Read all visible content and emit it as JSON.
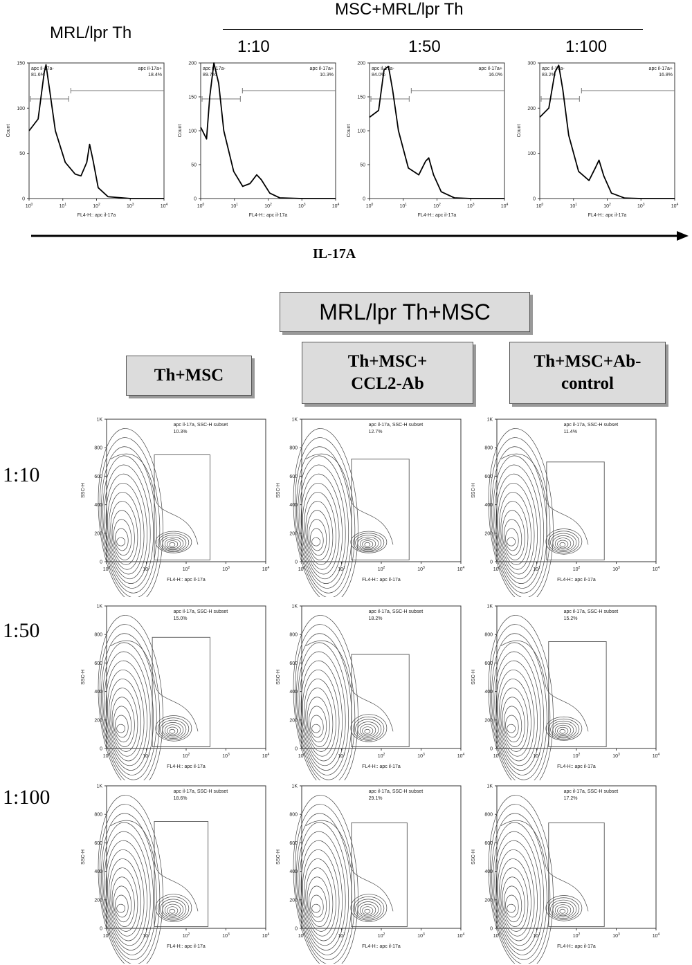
{
  "header": {
    "left_label": "MRL/lpr Th",
    "group_label": "MSC+MRL/lpr Th",
    "ratio_labels": [
      "1:10",
      "1:50",
      "1:100"
    ],
    "arrow_label": "IL-17A"
  },
  "section2": {
    "title": "MRL/lpr Th+MSC",
    "col_headers": [
      "Th+MSC",
      "Th+MSC+ CCL2-Ab",
      "Th+MSC+Ab- control"
    ],
    "row_labels": [
      "1:10",
      "1:50",
      "1:100"
    ]
  },
  "chart_data": [
    {
      "type": "line",
      "title": "MRL/lpr Th",
      "xlabel": "FL4-H:: apc il-17a",
      "ylabel": "Count",
      "xscale": "log",
      "xlim": [
        1,
        10000
      ],
      "ylim": [
        0,
        150
      ],
      "yticks": [
        0,
        50,
        100,
        150
      ],
      "xticks": [
        "10^0",
        "10^1",
        "10^2",
        "10^3",
        "10^4"
      ],
      "gates": [
        {
          "name": "apc il-17a-",
          "percent": "81.6%"
        },
        {
          "name": "apc il-17a+",
          "percent": "18.4%"
        }
      ],
      "x": [
        0.8,
        1.5,
        2.3,
        2.6,
        3.2,
        5,
        10,
        20,
        30,
        45,
        55,
        70,
        100,
        200,
        1000,
        10000
      ],
      "y": [
        75,
        88,
        140,
        148,
        125,
        75,
        40,
        27,
        25,
        40,
        60,
        42,
        12,
        2,
        0,
        0
      ]
    },
    {
      "type": "line",
      "title": "1:10",
      "xlabel": "FL4-H:: apc il-17a",
      "ylabel": "Count",
      "xscale": "log",
      "xlim": [
        1,
        10000
      ],
      "ylim": [
        0,
        200
      ],
      "yticks": [
        0,
        50,
        100,
        150,
        200
      ],
      "xticks": [
        "10^0",
        "10^1",
        "10^2",
        "10^3",
        "10^4"
      ],
      "gates": [
        {
          "name": "apc il-17a-",
          "percent": "89.7%"
        },
        {
          "name": "apc il-17a+",
          "percent": "10.3%"
        }
      ],
      "x": [
        0.8,
        1.2,
        1.5,
        2,
        2.8,
        4,
        8,
        15,
        25,
        40,
        55,
        100,
        200,
        1000,
        10000
      ],
      "y": [
        105,
        88,
        150,
        200,
        170,
        100,
        40,
        18,
        22,
        35,
        28,
        8,
        1,
        0,
        0
      ]
    },
    {
      "type": "line",
      "title": "1:50",
      "xlabel": "FL4-H:: apc il-17a",
      "ylabel": "Count",
      "xscale": "log",
      "xlim": [
        1,
        10000
      ],
      "ylim": [
        0,
        200
      ],
      "yticks": [
        0,
        50,
        100,
        150,
        200
      ],
      "xticks": [
        "10^0",
        "10^1",
        "10^2",
        "10^3",
        "10^4"
      ],
      "gates": [
        {
          "name": "apc il-17a-",
          "percent": "84.0%"
        },
        {
          "name": "apc il-17a+",
          "percent": "16.0%"
        }
      ],
      "x": [
        0.8,
        1.5,
        2.2,
        3,
        4,
        6,
        12,
        25,
        40,
        50,
        70,
        120,
        300,
        1000,
        10000
      ],
      "y": [
        120,
        130,
        190,
        195,
        160,
        100,
        45,
        35,
        55,
        60,
        35,
        10,
        1,
        0,
        0
      ]
    },
    {
      "type": "line",
      "title": "1:100",
      "xlabel": "FL4-H:: apc il-17a",
      "ylabel": "Count",
      "xscale": "log",
      "xlim": [
        1,
        10000
      ],
      "ylim": [
        0,
        300
      ],
      "yticks": [
        0,
        100,
        200,
        300
      ],
      "xticks": [
        "10^0",
        "10^1",
        "10^2",
        "10^3",
        "10^4"
      ],
      "gates": [
        {
          "name": "apc il-17a-",
          "percent": "83.2%"
        },
        {
          "name": "apc il-17a+",
          "percent": "16.8%"
        }
      ],
      "x": [
        0.8,
        1.5,
        2.3,
        3,
        4,
        6,
        12,
        25,
        40,
        50,
        70,
        120,
        300,
        1000,
        10000
      ],
      "y": [
        180,
        200,
        280,
        295,
        240,
        140,
        60,
        40,
        70,
        85,
        50,
        12,
        1,
        0,
        0
      ]
    },
    {
      "type": "scatter",
      "title": "Th+MSC 1:10",
      "xlabel": "FL4-H:: apc il-17a",
      "ylabel": "SSC-H",
      "xscale": "log",
      "xlim": [
        1,
        10000
      ],
      "ylim": [
        0,
        1000
      ],
      "yticks": [
        "0",
        "200",
        "400",
        "600",
        "800",
        "1K"
      ],
      "gate": {
        "name": "apc il-17a, SSC-H subset",
        "percent": "10.3%"
      }
    },
    {
      "type": "scatter",
      "title": "Th+MSC+ CCL2-Ab 1:10",
      "xlabel": "FL4-H:: apc il-17a",
      "ylabel": "SSC-H",
      "xscale": "log",
      "xlim": [
        1,
        10000
      ],
      "ylim": [
        0,
        1000
      ],
      "yticks": [
        "0",
        "200",
        "400",
        "600",
        "800",
        "1K"
      ],
      "gate": {
        "name": "apc il-17a, SSC-H subset",
        "percent": "12.7%"
      }
    },
    {
      "type": "scatter",
      "title": "Th+MSC+Ab- control 1:10",
      "xlabel": "FL4-H:: apc il-17a",
      "ylabel": "SSC-H",
      "xscale": "log",
      "xlim": [
        1,
        10000
      ],
      "ylim": [
        0,
        1000
      ],
      "yticks": [
        "0",
        "200",
        "400",
        "600",
        "800",
        "1K"
      ],
      "gate": {
        "name": "apc il-17a, SSC-H subset",
        "percent": "11.4%"
      }
    },
    {
      "type": "scatter",
      "title": "Th+MSC 1:50",
      "xlabel": "FL4-H:: apc il-17a",
      "ylabel": "SSC-H",
      "xscale": "log",
      "xlim": [
        1,
        10000
      ],
      "ylim": [
        0,
        1000
      ],
      "yticks": [
        "0",
        "200",
        "400",
        "600",
        "800",
        "1K"
      ],
      "gate": {
        "name": "apc il-17a, SSC-H subset",
        "percent": "15.0%"
      }
    },
    {
      "type": "scatter",
      "title": "Th+MSC+ CCL2-Ab 1:50",
      "xlabel": "FL4-H:: apc il-17a",
      "ylabel": "SSC-H",
      "xscale": "log",
      "xlim": [
        1,
        10000
      ],
      "ylim": [
        0,
        1000
      ],
      "yticks": [
        "0",
        "200",
        "400",
        "600",
        "800",
        "1K"
      ],
      "gate": {
        "name": "apc il-17a, SSC-H subset",
        "percent": "18.2%"
      }
    },
    {
      "type": "scatter",
      "title": "Th+MSC+Ab- control 1:50",
      "xlabel": "FL4-H:: apc il-17a",
      "ylabel": "SSC-H",
      "xscale": "log",
      "xlim": [
        1,
        10000
      ],
      "ylim": [
        0,
        1000
      ],
      "yticks": [
        "0",
        "200",
        "400",
        "600",
        "800",
        "1K"
      ],
      "gate": {
        "name": "apc il-17a, SSC-H subset",
        "percent": "15.2%"
      }
    },
    {
      "type": "scatter",
      "title": "Th+MSC 1:100",
      "xlabel": "FL4-H:: apc il-17a",
      "ylabel": "SSC-H",
      "xscale": "log",
      "xlim": [
        1,
        10000
      ],
      "ylim": [
        0,
        1000
      ],
      "yticks": [
        "0",
        "200",
        "400",
        "600",
        "800",
        "1K"
      ],
      "gate": {
        "name": "apc il-17a, SSC-H subset",
        "percent": "18.6%"
      }
    },
    {
      "type": "scatter",
      "title": "Th+MSC+ CCL2-Ab 1:100",
      "xlabel": "FL4-H:: apc il-17a",
      "ylabel": "SSC-H",
      "xscale": "log",
      "xlim": [
        1,
        10000
      ],
      "ylim": [
        0,
        1000
      ],
      "yticks": [
        "0",
        "200",
        "400",
        "600",
        "800",
        "1K"
      ],
      "gate": {
        "name": "apc il-17a, SSC-H subset",
        "percent": "29.1%"
      }
    },
    {
      "type": "scatter",
      "title": "Th+MSC+Ab- control 1:100",
      "xlabel": "FL4-H:: apc il-17a",
      "ylabel": "SSC-H",
      "xscale": "log",
      "xlim": [
        1,
        10000
      ],
      "ylim": [
        0,
        1000
      ],
      "yticks": [
        "0",
        "200",
        "400",
        "600",
        "800",
        "1K"
      ],
      "gate": {
        "name": "apc il-17a, SSC-H subset",
        "percent": "17.2%"
      }
    }
  ]
}
